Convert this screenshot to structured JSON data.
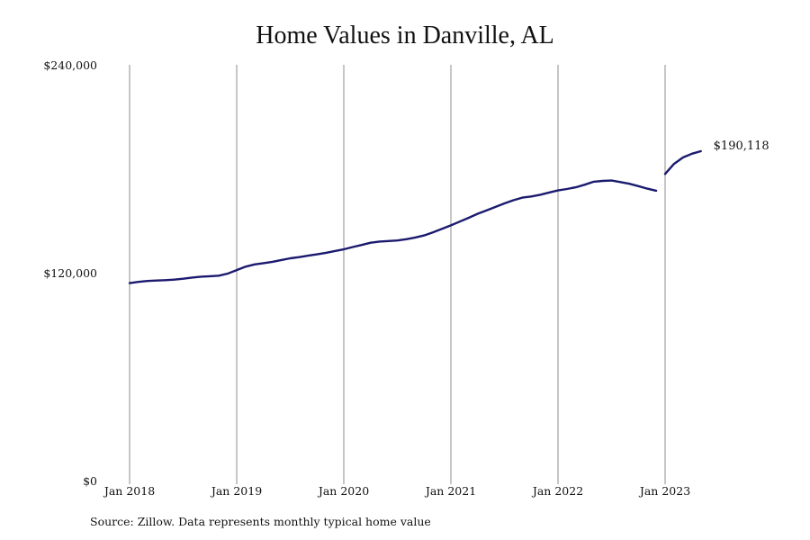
{
  "chart_data": {
    "type": "line",
    "title": "Home Values in Danville, AL",
    "xlabel": "",
    "ylabel": "",
    "ylim": [
      0,
      240000
    ],
    "y_ticks": [
      "$240,000",
      "$120,000",
      "$0"
    ],
    "y_tick_values": [
      240000,
      120000,
      0
    ],
    "x_ticks": [
      "Jan 2018",
      "Jan 2019",
      "Jan 2020",
      "Jan 2021",
      "Jan 2022",
      "Jan 2023"
    ],
    "x_tick_values": [
      "2018-01",
      "2019-01",
      "2020-01",
      "2021-01",
      "2022-01",
      "2023-01"
    ],
    "xlim": [
      "2018-01",
      "2023-05"
    ],
    "grid": "vertical",
    "line_color": "#1a1a6e",
    "end_label": "$190,118",
    "series": [
      {
        "segments": [
          [
            [
              "2018-01",
              114000
            ],
            [
              "2018-02",
              114700
            ],
            [
              "2018-03",
              115200
            ],
            [
              "2018-04",
              115500
            ],
            [
              "2018-05",
              115700
            ],
            [
              "2018-06",
              116000
            ],
            [
              "2018-07",
              116500
            ],
            [
              "2018-08",
              117200
            ],
            [
              "2018-09",
              117700
            ],
            [
              "2018-10",
              118000
            ],
            [
              "2018-11",
              118300
            ],
            [
              "2018-12",
              119500
            ],
            [
              "2019-01",
              121500
            ],
            [
              "2019-02",
              123500
            ],
            [
              "2019-03",
              124800
            ],
            [
              "2019-04",
              125500
            ],
            [
              "2019-05",
              126300
            ],
            [
              "2019-06",
              127300
            ],
            [
              "2019-07",
              128300
            ],
            [
              "2019-08",
              129000
            ],
            [
              "2019-09",
              129800
            ],
            [
              "2019-10",
              130600
            ],
            [
              "2019-11",
              131500
            ],
            [
              "2019-12",
              132500
            ],
            [
              "2020-01",
              133500
            ],
            [
              "2020-02",
              134800
            ],
            [
              "2020-03",
              136000
            ],
            [
              "2020-04",
              137300
            ],
            [
              "2020-05",
              138000
            ],
            [
              "2020-06",
              138300
            ],
            [
              "2020-07",
              138600
            ],
            [
              "2020-08",
              139300
            ],
            [
              "2020-09",
              140300
            ],
            [
              "2020-10",
              141500
            ],
            [
              "2020-11",
              143300
            ],
            [
              "2020-12",
              145300
            ],
            [
              "2021-01",
              147300
            ],
            [
              "2021-02",
              149500
            ],
            [
              "2021-03",
              151700
            ],
            [
              "2021-04",
              154000
            ],
            [
              "2021-05",
              156000
            ],
            [
              "2021-06",
              158000
            ],
            [
              "2021-07",
              160000
            ],
            [
              "2021-08",
              161800
            ],
            [
              "2021-09",
              163300
            ],
            [
              "2021-10",
              164000
            ],
            [
              "2021-11",
              165000
            ],
            [
              "2021-12",
              166300
            ],
            [
              "2022-01",
              167500
            ],
            [
              "2022-02",
              168300
            ],
            [
              "2022-03",
              169300
            ],
            [
              "2022-04",
              170800
            ],
            [
              "2022-05",
              172500
            ],
            [
              "2022-06",
              173000
            ],
            [
              "2022-07",
              173200
            ],
            [
              "2022-08",
              172300
            ],
            [
              "2022-09",
              171300
            ],
            [
              "2022-10",
              170000
            ],
            [
              "2022-11",
              168500
            ],
            [
              "2022-12",
              167300
            ]
          ],
          [
            [
              "2023-01",
              177000
            ],
            [
              "2023-02",
              182800
            ],
            [
              "2023-03",
              186500
            ],
            [
              "2023-04",
              188700
            ],
            [
              "2023-05",
              190118
            ]
          ]
        ]
      }
    ]
  },
  "footer": {
    "source": "Source: Zillow. Data represents monthly typical home value"
  }
}
